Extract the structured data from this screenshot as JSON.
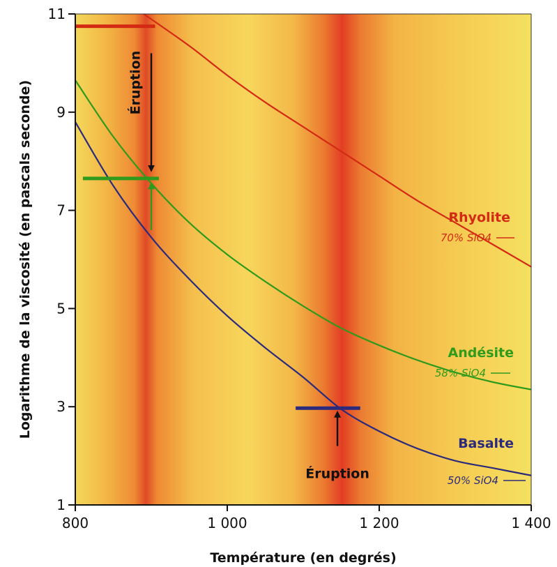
{
  "chart_data": {
    "type": "line",
    "xlabel": "Température (en degrés)",
    "ylabel": "Logarithme de la viscosité (en pascals seconde)",
    "xlim": [
      800,
      1400
    ],
    "ylim": [
      1,
      11
    ],
    "xticks": [
      "800",
      "1 000",
      "1 200",
      "1 400"
    ],
    "yticks": [
      "1",
      "3",
      "5",
      "7",
      "9",
      "11"
    ],
    "grid": false,
    "background": "orange-yellow heat gradient with red vertical bands near 890 and 1150",
    "series": [
      {
        "name": "Rhyolite",
        "subtitle": "70% SiO4",
        "color": "#d42a14",
        "x": [
          890,
          950,
          1000,
          1050,
          1100,
          1150,
          1200,
          1250,
          1300,
          1350,
          1400
        ],
        "y": [
          11.1,
          10.35,
          9.75,
          9.2,
          8.7,
          8.2,
          7.7,
          7.2,
          6.75,
          6.3,
          5.85
        ]
      },
      {
        "name": "Andésite",
        "subtitle": "58% SiO4",
        "color": "#2f9a1c",
        "x": [
          800,
          850,
          900,
          950,
          1000,
          1050,
          1100,
          1150,
          1200,
          1250,
          1300,
          1350,
          1400
        ],
        "y": [
          9.65,
          8.5,
          7.55,
          6.75,
          6.1,
          5.55,
          5.05,
          4.6,
          4.25,
          3.95,
          3.7,
          3.5,
          3.35
        ]
      },
      {
        "name": "Basalte",
        "subtitle": "50% SiO4",
        "color": "#2b2a7c",
        "x": [
          800,
          850,
          900,
          950,
          1000,
          1050,
          1100,
          1150,
          1200,
          1250,
          1300,
          1350,
          1400
        ],
        "y": [
          8.8,
          7.5,
          6.45,
          5.6,
          4.85,
          4.2,
          3.6,
          2.95,
          2.5,
          2.15,
          1.9,
          1.75,
          1.6
        ]
      }
    ],
    "markers": [
      {
        "series": "Rhyolite",
        "x0": 800,
        "x1": 905,
        "y": 10.75,
        "color": "#d42a14"
      },
      {
        "series": "Andésite",
        "x0": 810,
        "x1": 910,
        "y": 7.65,
        "color": "#2f9a1c"
      },
      {
        "series": "Basalte",
        "x0": 1090,
        "x1": 1175,
        "y": 2.97,
        "color": "#2b2a7c"
      }
    ],
    "annotations": [
      {
        "text": "Éruption",
        "orientation": "vertical",
        "x": 885,
        "y": 9.6
      },
      {
        "text": "Éruption",
        "orientation": "horizontal",
        "x": 1145,
        "y": 1.55
      }
    ],
    "arrows": [
      {
        "x": 900,
        "from": 10.2,
        "to": 7.85,
        "color": "#111111"
      },
      {
        "x": 900,
        "from": 6.6,
        "to": 7.5,
        "color": "#2f9a1c"
      },
      {
        "x": 1145,
        "from": 2.2,
        "to": 2.85,
        "color": "#111111"
      }
    ]
  }
}
